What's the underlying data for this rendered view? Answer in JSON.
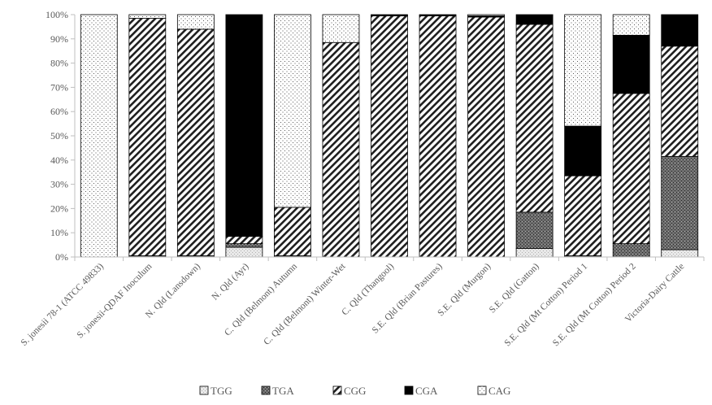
{
  "chart_data": {
    "type": "bar",
    "stacked": true,
    "percent_stacked": true,
    "y_ticks": [
      "0%",
      "10%",
      "20%",
      "30%",
      "40%",
      "50%",
      "60%",
      "70%",
      "80%",
      "90%",
      "100%"
    ],
    "ylim": [
      0,
      100
    ],
    "grid": false,
    "legend_position": "bottom",
    "categories": [
      "S. jonesii 78-1 (ATCC 49833)",
      "S. jonesii-QDAF Inoculum",
      "N. Qld (Lansdown)",
      "N. Qld (Ayr)",
      "C. Qld (Belmont) Autumn",
      "C. Qld (Belmont) Winter-Wet",
      "C. Qld (Thangool)",
      "S.E. Qld (Brian Pastures)",
      "S.E. Qld (Murgon)",
      "S.E. Qld (Gatton)",
      "S.E. Qld (Mt Cotton) Period 1",
      "S.E. Qld (Mt Cotton) Period 2",
      "Victoria-Dairy Cattle"
    ],
    "series": [
      {
        "name": "TGG",
        "values": [
          0,
          0,
          0,
          4,
          0,
          0,
          0,
          0,
          0,
          3.5,
          0,
          0,
          3
        ]
      },
      {
        "name": "TGA",
        "values": [
          0,
          0.5,
          0.5,
          1.5,
          0.5,
          0,
          0,
          0,
          0,
          15,
          0.5,
          5.5,
          38.5
        ]
      },
      {
        "name": "CGG",
        "values": [
          0,
          98,
          93.5,
          3,
          20,
          88.5,
          99.5,
          99.5,
          99,
          77.5,
          33,
          62,
          45.5
        ]
      },
      {
        "name": "CGA",
        "values": [
          0,
          0,
          0,
          91.5,
          0,
          0,
          0.5,
          0.5,
          0.5,
          4,
          20.5,
          24,
          13
        ]
      },
      {
        "name": "CAG",
        "values": [
          100,
          1.5,
          6,
          0,
          79.5,
          11.5,
          0,
          0,
          0.5,
          0,
          46,
          8.5,
          0
        ]
      }
    ],
    "colors": {
      "TGG": "#e8e8e8",
      "TGA": "#707070",
      "CGG": "#ffffff",
      "CGA": "#000000",
      "CAG": "#f4f4f4",
      "axis": "#bfbfbf",
      "text": "#595959"
    }
  }
}
